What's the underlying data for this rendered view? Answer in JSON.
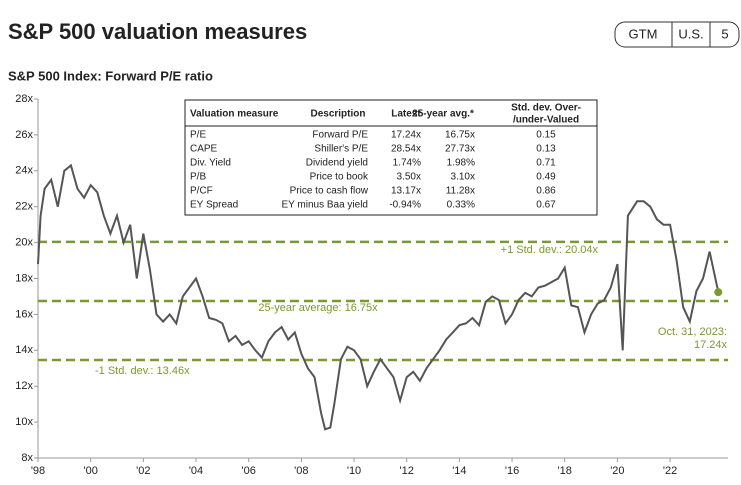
{
  "header": {
    "title": "S&P 500 valuation measures",
    "badges": [
      "GTM",
      "U.S.",
      "5"
    ]
  },
  "chart_data": {
    "type": "line",
    "title": "S&P 500 Index: Forward P/E ratio",
    "color": "#555555",
    "x": [
      1998.0,
      1998.1,
      1998.25,
      1998.5,
      1998.75,
      1999.0,
      1999.25,
      1999.5,
      1999.75,
      2000.0,
      2000.25,
      2000.5,
      2000.75,
      2001.0,
      2001.25,
      2001.5,
      2001.75,
      2002.0,
      2002.25,
      2002.5,
      2002.75,
      2003.0,
      2003.25,
      2003.5,
      2003.75,
      2004.0,
      2004.25,
      2004.5,
      2004.75,
      2005.0,
      2005.25,
      2005.5,
      2005.75,
      2006.0,
      2006.25,
      2006.5,
      2006.75,
      2007.0,
      2007.25,
      2007.5,
      2007.75,
      2008.0,
      2008.25,
      2008.5,
      2008.75,
      2008.9,
      2009.1,
      2009.25,
      2009.5,
      2009.75,
      2010.0,
      2010.25,
      2010.5,
      2010.75,
      2011.0,
      2011.25,
      2011.5,
      2011.75,
      2012.0,
      2012.25,
      2012.5,
      2012.75,
      2013.0,
      2013.25,
      2013.5,
      2013.75,
      2014.0,
      2014.25,
      2014.5,
      2014.75,
      2015.0,
      2015.25,
      2015.5,
      2015.75,
      2016.0,
      2016.25,
      2016.5,
      2016.75,
      2017.0,
      2017.25,
      2017.5,
      2017.75,
      2018.0,
      2018.25,
      2018.5,
      2018.75,
      2019.0,
      2019.25,
      2019.5,
      2019.75,
      2020.0,
      2020.2,
      2020.4,
      2020.75,
      2021.0,
      2021.25,
      2021.5,
      2021.75,
      2022.0,
      2022.25,
      2022.5,
      2022.75,
      2023.0,
      2023.25,
      2023.5,
      2023.83
    ],
    "values": [
      18.8,
      21.5,
      23,
      23.5,
      22,
      24,
      24.3,
      23,
      22.5,
      23.2,
      22.8,
      21.5,
      20.5,
      21.5,
      20,
      21,
      18,
      20.5,
      18.5,
      16,
      15.6,
      16,
      15.5,
      17,
      17.5,
      18,
      17,
      15.8,
      15.7,
      15.5,
      14.5,
      14.8,
      14.3,
      14.5,
      14,
      13.6,
      14.5,
      15,
      15.3,
      14.6,
      15,
      13.8,
      13,
      12.5,
      10.5,
      9.6,
      9.7,
      11,
      13.5,
      14.2,
      14,
      13.5,
      12,
      12.8,
      13.5,
      13,
      12.5,
      11.2,
      12.5,
      12.8,
      12.3,
      13,
      13.5,
      14,
      14.6,
      15,
      15.4,
      15.5,
      15.8,
      15.4,
      16.7,
      17,
      16.8,
      15.5,
      16,
      16.8,
      17.2,
      17,
      17.5,
      17.6,
      17.8,
      18,
      18.6,
      16.5,
      16.4,
      15,
      16,
      16.6,
      16.8,
      17.5,
      18.8,
      14,
      21.5,
      22.3,
      22.3,
      22,
      21.3,
      21,
      21,
      19,
      16.4,
      15.6,
      17.3,
      18,
      19.5,
      17.24
    ],
    "xlim": [
      1998,
      2024.2
    ],
    "xticks": [
      {
        "value": 1998,
        "label": "'98"
      },
      {
        "value": 2000,
        "label": "'00"
      },
      {
        "value": 2002,
        "label": "'02"
      },
      {
        "value": 2004,
        "label": "'04"
      },
      {
        "value": 2006,
        "label": "'06"
      },
      {
        "value": 2008,
        "label": "'08"
      },
      {
        "value": 2010,
        "label": "'10"
      },
      {
        "value": 2012,
        "label": "'12"
      },
      {
        "value": 2014,
        "label": "'14"
      },
      {
        "value": 2016,
        "label": "'16"
      },
      {
        "value": 2018,
        "label": "'18"
      },
      {
        "value": 2020,
        "label": "'20"
      },
      {
        "value": 2022,
        "label": "'22"
      }
    ],
    "ylim": [
      8,
      28
    ],
    "yticks": [
      {
        "value": 8,
        "label": "8x"
      },
      {
        "value": 10,
        "label": "10x"
      },
      {
        "value": 12,
        "label": "12x"
      },
      {
        "value": 14,
        "label": "14x"
      },
      {
        "value": 16,
        "label": "16x"
      },
      {
        "value": 18,
        "label": "18x"
      },
      {
        "value": 20,
        "label": "20x"
      },
      {
        "value": 22,
        "label": "22x"
      },
      {
        "value": 24,
        "label": "24x"
      },
      {
        "value": 26,
        "label": "26x"
      },
      {
        "value": 28,
        "label": "28x"
      }
    ],
    "reference_lines": [
      {
        "value": 20.04,
        "label": "+1 Std. dev.: 20.04x",
        "color": "#7a9a2e"
      },
      {
        "value": 16.75,
        "label": "25-year average: 16.75x",
        "color": "#7a9a2e"
      },
      {
        "value": 13.46,
        "label": "-1 Std. dev.: 13.46x",
        "color": "#7a9a2e"
      }
    ],
    "annotation": [
      "Oct. 31, 2023:",
      "17.24x"
    ],
    "marker_color": "#7a9a2e"
  },
  "table": {
    "header": [
      "Valuation measure",
      "Description",
      "Latest",
      "25-year avg.*",
      [
        "Std. dev. Over-",
        "/under-Valued"
      ]
    ],
    "rows": [
      [
        "P/E",
        "Forward P/E",
        "17.24x",
        "16.75x",
        "0.15"
      ],
      [
        "CAPE",
        "Shiller's P/E",
        "28.54x",
        "27.73x",
        "0.13"
      ],
      [
        "Div. Yield",
        "Dividend yield",
        "1.74%",
        "1.98%",
        "0.71"
      ],
      [
        "P/B",
        "Price to book",
        "3.50x",
        "3.10x",
        "0.49"
      ],
      [
        "P/CF",
        "Price to cash flow",
        "13.17x",
        "11.28x",
        "0.86"
      ],
      [
        "EY Spread",
        "EY minus Baa yield",
        "-0.94%",
        "0.33%",
        "0.67"
      ]
    ]
  }
}
